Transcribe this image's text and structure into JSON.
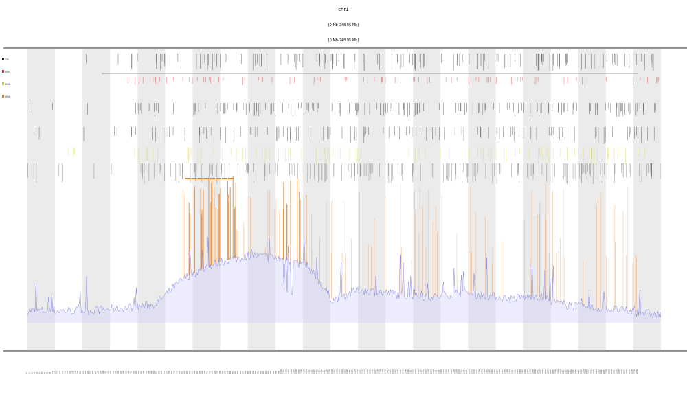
{
  "header": {
    "title": "chr1",
    "subtitle_1": "[0 Mb-248.95 Mb]",
    "subtitle_2": "[0 Mb-248.95 Mb]"
  },
  "chart_data": {
    "type": "area",
    "title": "chr1",
    "subtitles": [
      "[0 Mb-248.95 Mb]",
      "[0 Mb-248.95 Mb]"
    ],
    "xlabel": "",
    "ylabel": "",
    "x_range_mb": [
      0,
      248.95
    ],
    "band_count": 23,
    "band_pattern": "alternating light-gray / white cytoband stripes",
    "legend": [
      "TD",
      "INV",
      "DEL",
      "SNV"
    ],
    "legend_placement": "left",
    "track_colors": {
      "coverage_line": "#5a5ad8",
      "coverage_fill": "#c8c8f5",
      "amplification": "#f07d1a",
      "red_marks": "#e03030",
      "yellow_marks": "#d4d430",
      "black_marks": "#222222",
      "band_gray": "#ebebeb"
    },
    "coverage_profile": {
      "x_mb": [
        0,
        12,
        25,
        38,
        50,
        62,
        75,
        88,
        100,
        110,
        120,
        130,
        140,
        150,
        160,
        170,
        180,
        190,
        200,
        210,
        220,
        230,
        240,
        248.95
      ],
      "y_level": [
        0.08,
        0.08,
        0.08,
        0.1,
        0.12,
        0.3,
        0.4,
        0.45,
        0.42,
        0.38,
        0.15,
        0.22,
        0.2,
        0.18,
        0.17,
        0.2,
        0.18,
        0.16,
        0.18,
        0.12,
        0.1,
        0.09,
        0.07,
        0.05
      ]
    },
    "amplified_regions_mb": [
      [
        62,
        82
      ],
      [
        100,
        110
      ]
    ]
  }
}
